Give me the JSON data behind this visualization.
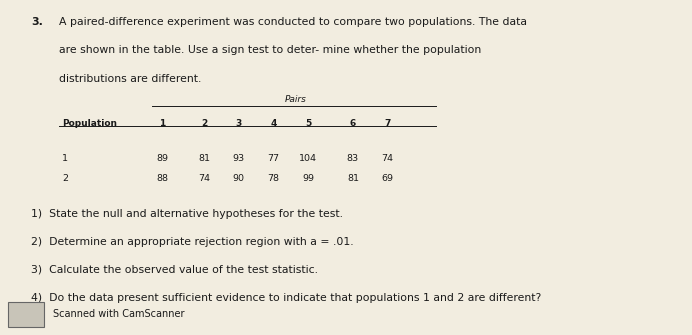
{
  "bg_color": "#f2ede0",
  "title_number": "3.",
  "title_text_line1": "A paired-difference experiment was conducted to compare two populations. The data",
  "title_text_line2": "are shown in the table. Use a sign test to deter- mine whether the population",
  "title_text_line3": "distributions are different.",
  "pairs_label": "Pairs",
  "col_headers": [
    "Population",
    "1",
    "2",
    "3",
    "4",
    "5",
    "6",
    "7"
  ],
  "row1_label": "1",
  "row2_label": "2",
  "row1_values": [
    "89",
    "81",
    "93",
    "77",
    "104",
    "83",
    "74"
  ],
  "row2_values": [
    "88",
    "74",
    "90",
    "78",
    "99",
    "81",
    "69"
  ],
  "questions": [
    "1)  State the null and alternative hypotheses for the test.",
    "2)  Determine an appropriate rejection region with a = .01.",
    "3)  Calculate the observed value of the test statistic.",
    "4)  Do the data present sufficient evidence to indicate that populations 1 and 2 are different?"
  ],
  "footer": "Scanned with CamScanner",
  "font_color": "#1a1a1a",
  "font_size_title": 7.8,
  "font_size_table_header": 6.5,
  "font_size_table_data": 6.8,
  "font_size_questions": 7.8,
  "font_size_footer": 7.0
}
